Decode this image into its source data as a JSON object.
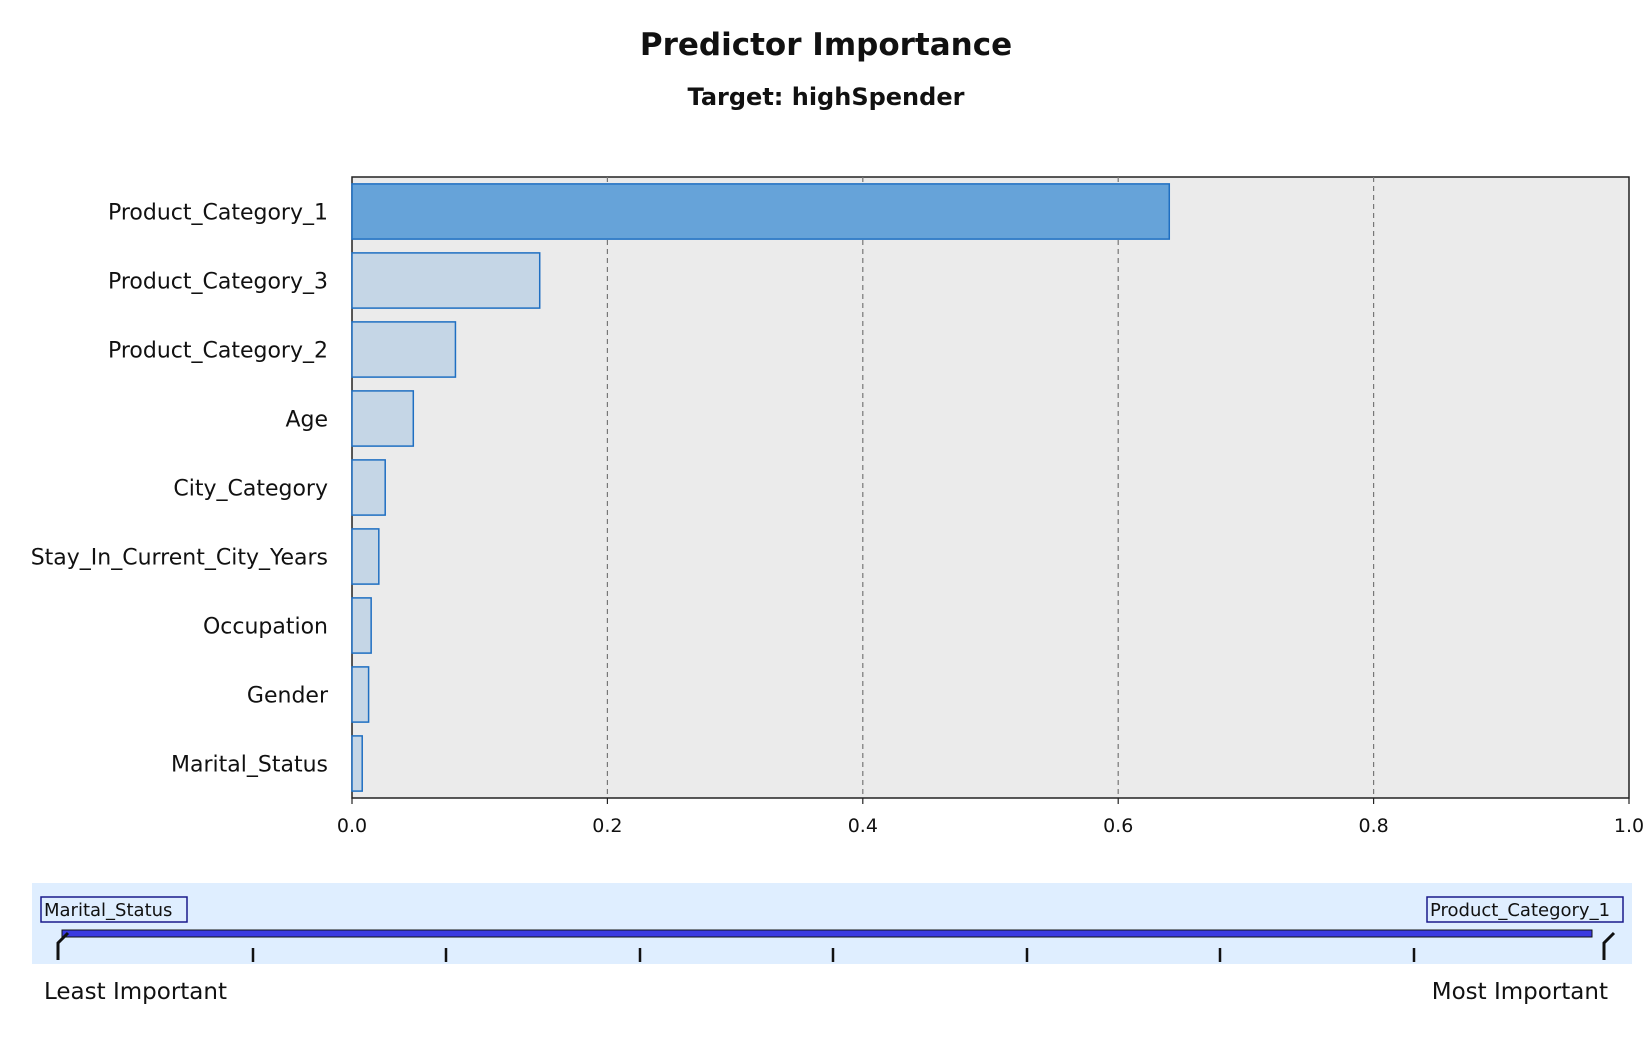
{
  "chart_data": {
    "type": "bar",
    "orientation": "horizontal",
    "title": "Predictor Importance",
    "subtitle": "Target: highSpender",
    "categories": [
      "Product_Category_1",
      "Product_Category_3",
      "Product_Category_2",
      "Age",
      "City_Category",
      "Stay_In_Current_City_Years",
      "Occupation",
      "Gender",
      "Marital_Status"
    ],
    "values": [
      0.64,
      0.147,
      0.081,
      0.048,
      0.026,
      0.021,
      0.015,
      0.013,
      0.008
    ],
    "xlim": [
      0,
      1
    ],
    "xticks": [
      "0.0",
      "0.2",
      "0.4",
      "0.6",
      "0.8",
      "1.0"
    ],
    "grid": "vertical dashed",
    "colors": {
      "top_bar_fill": "#66a3d9",
      "bar_fill": "#c5d6e6",
      "bar_stroke": "#1f6fc2",
      "plot_background": "#ebebeb",
      "slider_background": "#dfeeff",
      "slider_track": "#3a3ae0"
    }
  },
  "slider": {
    "left_tag": "Marital_Status",
    "right_tag": "Product_Category_1",
    "left_caption": "Least Important",
    "right_caption": "Most Important"
  }
}
